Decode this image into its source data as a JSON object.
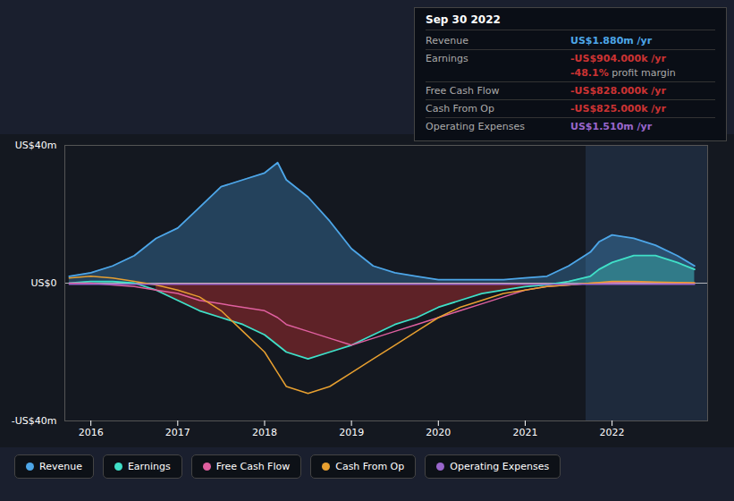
{
  "chart_data": {
    "type": "line",
    "title": "Sep 30 2022",
    "x": [
      2015.75,
      2016.0,
      2016.25,
      2016.5,
      2016.75,
      2017.0,
      2017.25,
      2017.5,
      2017.75,
      2018.0,
      2018.15,
      2018.25,
      2018.5,
      2018.75,
      2019.0,
      2019.25,
      2019.5,
      2019.75,
      2020.0,
      2020.25,
      2020.5,
      2020.75,
      2021.0,
      2021.25,
      2021.5,
      2021.75,
      2021.85,
      2022.0,
      2022.25,
      2022.5,
      2022.75,
      2022.95
    ],
    "xlim": [
      2015.7,
      2023.1
    ],
    "xticks": [
      2016,
      2017,
      2018,
      2019,
      2020,
      2021,
      2022
    ],
    "ylim": [
      -40,
      40
    ],
    "yticks": [
      {
        "value": -40,
        "label": "-US$40m"
      },
      {
        "value": 0,
        "label": "US$0"
      },
      {
        "value": 40,
        "label": "US$40m"
      }
    ],
    "grid": true,
    "legend": "bottom",
    "shaded_region_start": 2021.7,
    "series": [
      {
        "name": "Revenue",
        "color": "#4da6e8",
        "type": "area",
        "values": [
          2,
          3,
          5,
          8,
          13,
          16,
          22,
          28,
          30,
          32,
          35,
          30,
          25,
          18,
          10,
          5,
          3,
          2,
          1,
          1,
          1,
          1,
          1.5,
          2,
          5,
          9,
          12,
          14,
          13,
          11,
          8,
          5
        ]
      },
      {
        "name": "Earnings",
        "color": "#40e0c8",
        "type": "area",
        "values": [
          0,
          0.5,
          0.5,
          0,
          -2,
          -5,
          -8,
          -10,
          -12,
          -15,
          -18,
          -20,
          -22,
          -20,
          -18,
          -15,
          -12,
          -10,
          -7,
          -5,
          -3,
          -2,
          -1,
          -0.5,
          0.5,
          2,
          4,
          6,
          8,
          8,
          6,
          4
        ]
      },
      {
        "name": "Free Cash Flow",
        "color": "#e060a0",
        "type": "line",
        "values": [
          0,
          0,
          -0.5,
          -1,
          -2,
          -3,
          -5,
          -6,
          -7,
          -8,
          -10,
          -12,
          -14,
          -16,
          -18,
          -16,
          -14,
          -12,
          -10,
          -8,
          -6,
          -4,
          -2,
          -1,
          -0.5,
          0,
          0.1,
          0.2,
          0.3,
          0.2,
          0.1,
          0
        ]
      },
      {
        "name": "Cash From Op",
        "color": "#e8a030",
        "type": "line",
        "values": [
          1.5,
          2,
          1.5,
          0.5,
          -0.5,
          -2,
          -4,
          -8,
          -14,
          -20,
          -26,
          -30,
          -32,
          -30,
          -26,
          -22,
          -18,
          -14,
          -10,
          -7,
          -5,
          -3,
          -2,
          -1,
          -0.5,
          0,
          0.2,
          0.5,
          0.5,
          0.3,
          0.2,
          0.1
        ]
      },
      {
        "name": "Operating Expenses",
        "color": "#9966cc",
        "type": "line",
        "values": [
          -0.3,
          -0.3,
          -0.3,
          -0.3,
          -0.3,
          -0.3,
          -0.3,
          -0.3,
          -0.3,
          -0.3,
          -0.3,
          -0.3,
          -0.3,
          -0.3,
          -0.3,
          -0.3,
          -0.3,
          -0.3,
          -0.3,
          -0.3,
          -0.3,
          -0.3,
          -0.3,
          -0.3,
          -0.3,
          -0.3,
          -0.3,
          -0.3,
          -0.3,
          -0.3,
          -0.3,
          -0.3
        ]
      }
    ],
    "annotations": [
      {
        "label": "Revenue",
        "text": "US$1.880m /yr",
        "color": "#4da6e8"
      },
      {
        "label": "Earnings",
        "text": "-US$904.000k /yr",
        "color": "#cc3333",
        "note": "-48.1%",
        "note_text": " profit margin"
      },
      {
        "label": "Free Cash Flow",
        "text": "-US$828.000k /yr",
        "color": "#cc3333"
      },
      {
        "label": "Cash From Op",
        "text": "-US$825.000k /yr",
        "color": "#cc3333"
      },
      {
        "label": "Operating Expenses",
        "text": "US$1.510m /yr",
        "color": "#9966cc"
      }
    ]
  }
}
